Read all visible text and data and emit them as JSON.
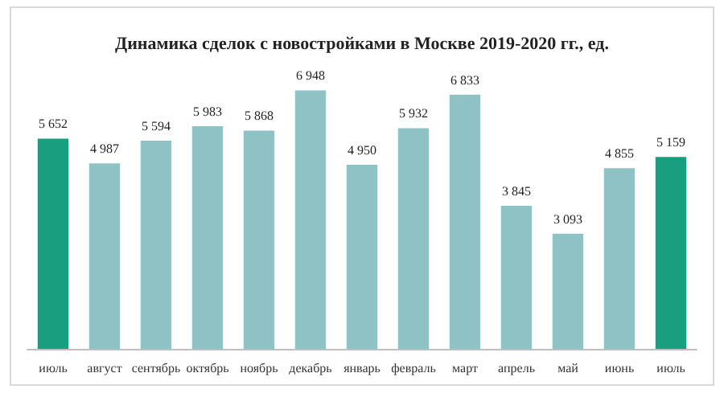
{
  "chart_data": {
    "type": "bar",
    "title": "Динамика сделок с новостройками в Москве 2019-2020 гг., ед.",
    "categories": [
      "июль",
      "август",
      "сентябрь",
      "октябрь",
      "ноябрь",
      "декабрь",
      "январь",
      "февраль",
      "март",
      "апрель",
      "май",
      "июнь",
      "июль"
    ],
    "values": [
      5652,
      4987,
      5594,
      5983,
      5868,
      6948,
      4950,
      5932,
      6833,
      3845,
      3093,
      4855,
      5159
    ],
    "value_labels": [
      "5 652",
      "4 987",
      "5 594",
      "5 983",
      "5 868",
      "6 948",
      "4 950",
      "5 932",
      "6 833",
      "3 845",
      "3 093",
      "4 855",
      "5 159"
    ],
    "colors": [
      "#1a9e80",
      "#8fc2c4",
      "#8fc2c4",
      "#8fc2c4",
      "#8fc2c4",
      "#8fc2c4",
      "#8fc2c4",
      "#8fc2c4",
      "#8fc2c4",
      "#8fc2c4",
      "#8fc2c4",
      "#8fc2c4",
      "#1a9e80"
    ],
    "tick_labels": "x"
  }
}
